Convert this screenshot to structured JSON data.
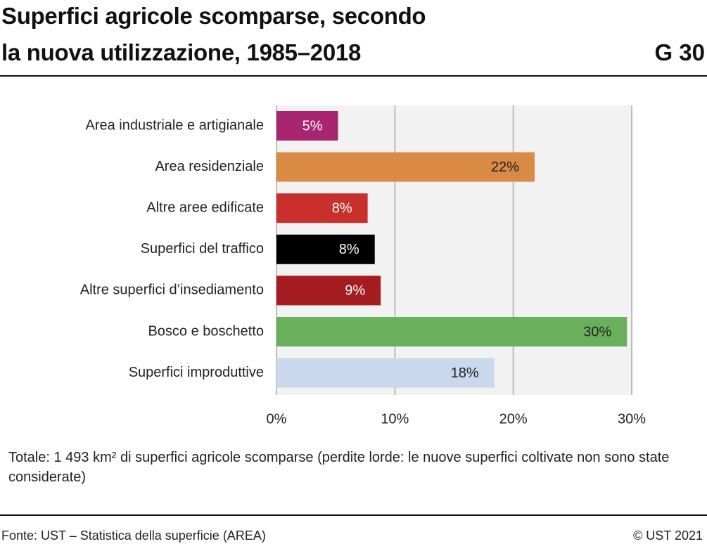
{
  "chart_data": {
    "type": "bar",
    "orientation": "horizontal",
    "title_lines": [
      "Superfici agricole scomparse, secondo",
      "la nuova utilizzazione, 1985–2018"
    ],
    "chart_number": "G 30",
    "categories": [
      "Area industriale e artigianale",
      "Area residenziale",
      "Altre aree edificate",
      "Superfici del traffico",
      "Altre superfici d’insediamento",
      "Bosco e boschetto",
      "Superfici improduttive"
    ],
    "values": [
      5.2,
      21.8,
      7.7,
      8.3,
      8.8,
      29.6,
      18.4
    ],
    "value_labels": [
      "5%",
      "22%",
      "8%",
      "8%",
      "9%",
      "30%",
      "18%"
    ],
    "colors": [
      "#a8256f",
      "#d98b45",
      "#c9302c",
      "#000000",
      "#a51c20",
      "#6ab05c",
      "#c9d8ec"
    ],
    "xlim": [
      0,
      30
    ],
    "xticks": [
      {
        "value": 0,
        "label": "0%"
      },
      {
        "value": 10,
        "label": "10%"
      },
      {
        "value": 20,
        "label": "20%"
      },
      {
        "value": 30,
        "label": "30%"
      }
    ],
    "grid": true,
    "note": "Totale: 1 493 km² di superfici agricole scomparse (perdite lorde: le nuove superfici coltivate non sono state considerate)",
    "source": "Fonte: UST – Statistica della superficie (AREA)",
    "copyright": "© UST 2021"
  }
}
